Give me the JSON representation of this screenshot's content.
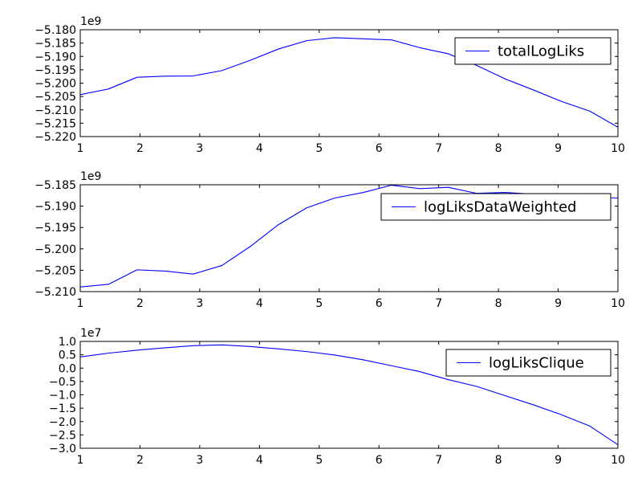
{
  "chart_data": [
    {
      "type": "line",
      "offset_label": "1e9",
      "xlim": [
        1,
        10
      ],
      "ylim": [
        -5.22,
        -5.18
      ],
      "xticks": [
        1,
        2,
        3,
        4,
        5,
        6,
        7,
        8,
        9,
        10
      ],
      "xtick_labels": [
        "1",
        "2",
        "3",
        "4",
        "5",
        "6",
        "7",
        "8",
        "9",
        "10"
      ],
      "yticks": [
        -5.22,
        -5.215,
        -5.21,
        -5.205,
        -5.2,
        -5.195,
        -5.19,
        -5.185,
        -5.18
      ],
      "ytick_labels": [
        "−5.220",
        "−5.215",
        "−5.210",
        "−5.205",
        "−5.200",
        "−5.195",
        "−5.190",
        "−5.185",
        "−5.180"
      ],
      "legend_position": "top-right",
      "series": [
        {
          "name": "totalLogLiks",
          "color": "#0000ff",
          "x": [
            1,
            1.47,
            1.95,
            2.42,
            2.89,
            3.37,
            3.84,
            4.32,
            4.79,
            5.26,
            5.74,
            6.21,
            6.68,
            7.16,
            7.63,
            8.11,
            8.58,
            9.05,
            9.53,
            10
          ],
          "y": [
            -5.2043,
            -5.2022,
            -5.1978,
            -5.1974,
            -5.1973,
            -5.1953,
            -5.1915,
            -5.1872,
            -5.1841,
            -5.183,
            -5.1834,
            -5.1838,
            -5.1867,
            -5.189,
            -5.1933,
            -5.1984,
            -5.2025,
            -5.2068,
            -5.2105,
            -5.2165
          ]
        }
      ]
    },
    {
      "type": "line",
      "offset_label": "1e9",
      "xlim": [
        1,
        10
      ],
      "ylim": [
        -5.21,
        -5.185
      ],
      "xticks": [
        1,
        2,
        3,
        4,
        5,
        6,
        7,
        8,
        9,
        10
      ],
      "xtick_labels": [
        "1",
        "2",
        "3",
        "4",
        "5",
        "6",
        "7",
        "8",
        "9",
        "10"
      ],
      "yticks": [
        -5.21,
        -5.205,
        -5.2,
        -5.195,
        -5.19,
        -5.185
      ],
      "ytick_labels": [
        "−5.210",
        "−5.205",
        "−5.200",
        "−5.195",
        "−5.190",
        "−5.185"
      ],
      "legend_position": "upper-right",
      "series": [
        {
          "name": "logLiksDataWeighted",
          "color": "#0000ff",
          "x": [
            1,
            1.47,
            1.95,
            2.42,
            2.89,
            3.37,
            3.84,
            4.32,
            4.79,
            5.26,
            5.74,
            6.21,
            6.68,
            7.16,
            7.63,
            8.11,
            8.58,
            9.05,
            9.53,
            10
          ],
          "y": [
            -5.2089,
            -5.2083,
            -5.2049,
            -5.2052,
            -5.2059,
            -5.2039,
            -5.1995,
            -5.1943,
            -5.1904,
            -5.1881,
            -5.1868,
            -5.1851,
            -5.1859,
            -5.1856,
            -5.187,
            -5.1868,
            -5.1872,
            -5.1874,
            -5.188,
            -5.1881
          ]
        }
      ]
    },
    {
      "type": "line",
      "offset_label": "1e7",
      "xlim": [
        1,
        10
      ],
      "ylim": [
        -3.0,
        1.0
      ],
      "xticks": [
        1,
        2,
        3,
        4,
        5,
        6,
        7,
        8,
        9,
        10
      ],
      "xtick_labels": [
        "1",
        "2",
        "3",
        "4",
        "5",
        "6",
        "7",
        "8",
        "9",
        "10"
      ],
      "yticks": [
        -3.0,
        -2.5,
        -2.0,
        -1.5,
        -1.0,
        -0.5,
        0.0,
        0.5,
        1.0
      ],
      "ytick_labels": [
        "−3.0",
        "−2.5",
        "−2.0",
        "−1.5",
        "−1.0",
        "−0.5",
        "0.0",
        "0.5",
        "1.0"
      ],
      "legend_position": "top-right",
      "series": [
        {
          "name": "logLiksClique",
          "color": "#0000ff",
          "x": [
            1,
            1.47,
            1.95,
            2.42,
            2.89,
            3.37,
            3.84,
            4.32,
            4.79,
            5.26,
            5.74,
            6.21,
            6.68,
            7.16,
            7.63,
            8.11,
            8.58,
            9.05,
            9.53,
            10
          ],
          "y": [
            0.42,
            0.56,
            0.67,
            0.76,
            0.84,
            0.87,
            0.81,
            0.72,
            0.62,
            0.49,
            0.31,
            0.09,
            -0.13,
            -0.43,
            -0.68,
            -1.03,
            -1.37,
            -1.74,
            -2.17,
            -2.87
          ]
        }
      ]
    }
  ]
}
